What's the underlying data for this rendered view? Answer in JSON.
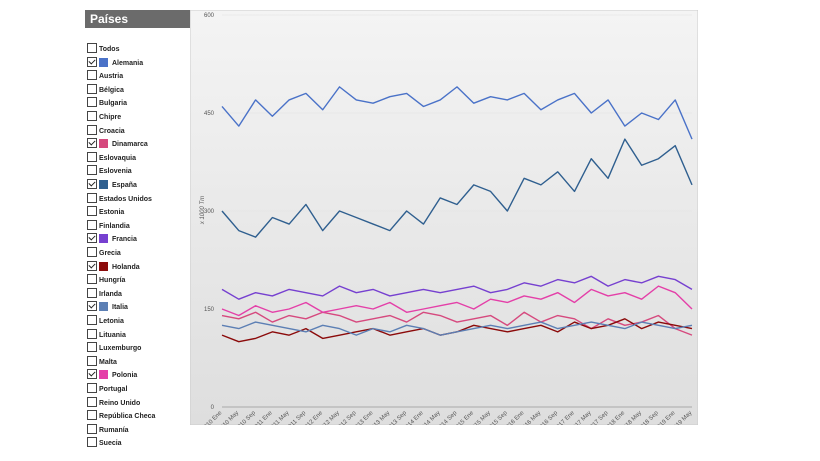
{
  "sidebar": {
    "title": "Países",
    "countries": [
      "Todos",
      "Alemania",
      "Austria",
      "Bélgica",
      "Bulgaria",
      "Chipre",
      "Croacia",
      "Dinamarca",
      "Eslovaquia",
      "Eslovenia",
      "España",
      "Estados Unidos",
      "Estonia",
      "Finlandia",
      "Francia",
      "Grecia",
      "Holanda",
      "Hungría",
      "Irlanda",
      "Italia",
      "Letonia",
      "Lituania",
      "Luxemburgo",
      "Malta",
      "Polonia",
      "Portugal",
      "Reino Unido",
      "República Checa",
      "Rumanía",
      "Suecia"
    ]
  },
  "chart_data": {
    "type": "line",
    "y_label": "x 1000 Tm",
    "categories": [
      "2010 Ene",
      "2010 May",
      "2010 Sep",
      "2011 Ene",
      "2011 May",
      "2011 Sep",
      "2012 Ene",
      "2012 May",
      "2012 Sep",
      "2013 Ene",
      "2013 May",
      "2013 Sep",
      "2014 Ene",
      "2014 May",
      "2014 Sep",
      "2015 Ene",
      "2015 May",
      "2015 Sep",
      "2016 Ene",
      "2016 May",
      "2016 Sep",
      "2017 Ene",
      "2017 May",
      "2017 Sep",
      "2018 Ene",
      "2018 May",
      "2018 Sep",
      "2019 Ene",
      "2019 May"
    ],
    "ylim": [
      0,
      600
    ],
    "yticks": [
      0,
      150,
      300,
      450,
      600
    ],
    "series": [
      {
        "name": "Alemania",
        "color": "#4a72c8",
        "values": [
          460,
          430,
          470,
          445,
          470,
          480,
          455,
          490,
          470,
          465,
          475,
          480,
          460,
          470,
          490,
          465,
          475,
          470,
          480,
          455,
          470,
          480,
          450,
          470,
          430,
          450,
          440,
          470,
          410
        ]
      },
      {
        "name": "Dinamarca",
        "color": "#d6497e",
        "values": [
          140,
          135,
          145,
          130,
          140,
          135,
          145,
          140,
          130,
          135,
          140,
          130,
          145,
          140,
          130,
          135,
          140,
          125,
          145,
          130,
          140,
          135,
          120,
          135,
          125,
          130,
          140,
          120,
          110
        ]
      },
      {
        "name": "España",
        "color": "#2f5f8f",
        "values": [
          300,
          270,
          260,
          290,
          280,
          310,
          270,
          300,
          290,
          280,
          270,
          300,
          280,
          320,
          310,
          340,
          330,
          300,
          350,
          340,
          360,
          330,
          380,
          350,
          410,
          370,
          380,
          400,
          340
        ]
      },
      {
        "name": "Francia",
        "color": "#7640d0",
        "values": [
          180,
          165,
          175,
          170,
          180,
          175,
          170,
          185,
          175,
          180,
          170,
          175,
          180,
          175,
          180,
          185,
          175,
          180,
          190,
          185,
          195,
          190,
          200,
          185,
          195,
          190,
          200,
          195,
          180
        ]
      },
      {
        "name": "Holanda",
        "color": "#8b0a0a",
        "values": [
          110,
          100,
          105,
          115,
          110,
          120,
          105,
          110,
          115,
          120,
          110,
          115,
          120,
          110,
          115,
          125,
          120,
          115,
          120,
          125,
          115,
          130,
          120,
          125,
          135,
          120,
          130,
          125,
          120
        ]
      },
      {
        "name": "Italia",
        "color": "#5c7fb4",
        "values": [
          125,
          120,
          130,
          125,
          120,
          115,
          125,
          120,
          110,
          120,
          115,
          125,
          120,
          110,
          115,
          120,
          125,
          120,
          125,
          130,
          120,
          125,
          130,
          125,
          120,
          130,
          125,
          120,
          125
        ]
      },
      {
        "name": "Polonia",
        "color": "#e43fa8",
        "values": [
          150,
          140,
          155,
          145,
          150,
          160,
          145,
          150,
          155,
          150,
          160,
          145,
          150,
          155,
          160,
          150,
          165,
          160,
          170,
          165,
          175,
          160,
          180,
          170,
          175,
          165,
          185,
          175,
          150
        ]
      }
    ]
  }
}
